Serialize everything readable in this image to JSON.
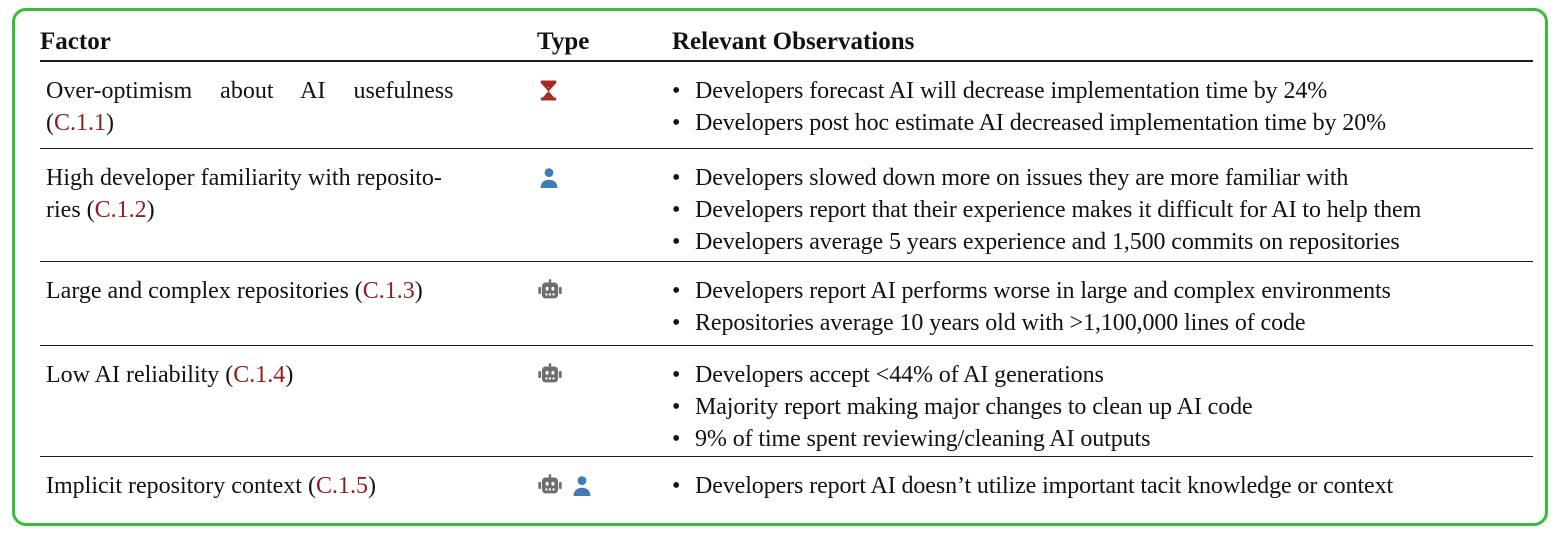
{
  "colors": {
    "border_green": "#3ABC3A",
    "ref_red": "#8F1D1D",
    "rule_dark": "#1c1c1c",
    "hourglass_red": "#A32C28",
    "person_blue": "#3E7CB8",
    "robot_gray": "#6E6E70"
  },
  "table": {
    "headers": [
      "Factor",
      "Type",
      "Relevant Observations"
    ],
    "bullet_glyph": "•",
    "rows": [
      {
        "factor_lines": [
          "Over-optimism about AI usefulness",
          "(|C.1.1|)"
        ],
        "wide_first_line": true,
        "ref": "C.1.1",
        "type_icons": [
          "hourglass-icon"
        ],
        "observations": [
          "Developers forecast AI will decrease implementation time by 24%",
          "Developers post hoc estimate AI decreased implementation time by 20%"
        ]
      },
      {
        "factor_lines": [
          "High developer familiarity with reposito-",
          "ries (|C.1.2|)"
        ],
        "wide_first_line": false,
        "ref": "C.1.2",
        "type_icons": [
          "person-icon"
        ],
        "observations": [
          "Developers slowed down more on issues they are more familiar with",
          "Developers report that their experience makes it difficult for AI to help them",
          "Developers average 5 years experience and 1,500 commits on repositories"
        ]
      },
      {
        "factor_lines": [
          "Large and complex repositories (|C.1.3|)"
        ],
        "wide_first_line": false,
        "ref": "C.1.3",
        "type_icons": [
          "robot-icon"
        ],
        "observations": [
          "Developers report AI performs worse in large and complex environments",
          "Repositories average 10 years old with >1,100,000 lines of code"
        ]
      },
      {
        "factor_lines": [
          "Low AI reliability (|C.1.4|)"
        ],
        "wide_first_line": false,
        "ref": "C.1.4",
        "type_icons": [
          "robot-icon"
        ],
        "observations": [
          "Developers accept <44% of AI generations",
          "Majority report making major changes to clean up AI code",
          "9% of time spent reviewing/cleaning AI outputs"
        ]
      },
      {
        "factor_lines": [
          "Implicit repository context (|C.1.5|)"
        ],
        "wide_first_line": false,
        "ref": "C.1.5",
        "type_icons": [
          "robot-icon",
          "person-icon"
        ],
        "observations": [
          "Developers report AI doesn’t utilize important tacit knowledge or context"
        ]
      }
    ]
  }
}
